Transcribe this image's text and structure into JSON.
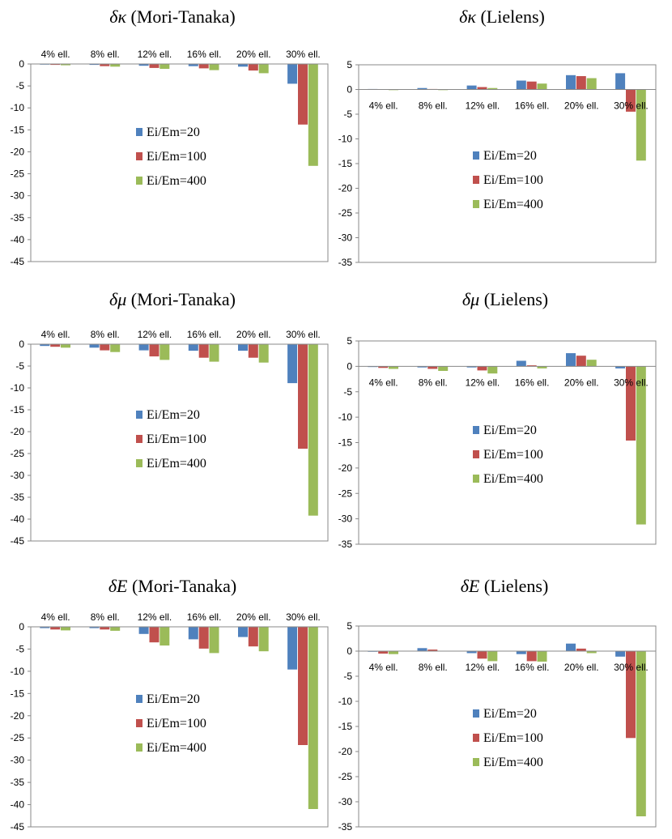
{
  "chart_data": [
    {
      "type": "bar",
      "title": {
        "symbol": "δκ",
        "method": "(Mori-Tanaka)"
      },
      "categories": [
        "4% ell.",
        "8% ell.",
        "12% ell.",
        "16% ell.",
        "20% ell.",
        "30% ell."
      ],
      "series": [
        {
          "name": "Ei/Em=20",
          "color": "#4f81bd",
          "values": [
            -0.1,
            -0.2,
            -0.4,
            -0.5,
            -0.6,
            -4.5
          ]
        },
        {
          "name": "Ei/Em=100",
          "color": "#c0504d",
          "values": [
            -0.2,
            -0.5,
            -0.9,
            -1.0,
            -1.5,
            -13.8
          ]
        },
        {
          "name": "Ei/Em=400",
          "color": "#9bbb59",
          "values": [
            -0.3,
            -0.6,
            -1.1,
            -1.4,
            -2.1,
            -23.2
          ]
        }
      ],
      "ylim": [
        -45,
        0
      ],
      "yticks": [
        0,
        -5,
        -10,
        -15,
        -20,
        -25,
        -30,
        -35,
        -40,
        -45
      ],
      "category_labels_position": "top"
    },
    {
      "type": "bar",
      "title": {
        "symbol": "δκ",
        "method": "(Lielens)"
      },
      "categories": [
        "4% ell.",
        "8% ell.",
        "12% ell.",
        "16% ell.",
        "20% ell.",
        "30% ell."
      ],
      "series": [
        {
          "name": "Ei/Em=20",
          "color": "#4f81bd",
          "values": [
            0.1,
            0.3,
            0.8,
            1.8,
            2.9,
            3.3
          ]
        },
        {
          "name": "Ei/Em=100",
          "color": "#c0504d",
          "values": [
            0.05,
            0.1,
            0.5,
            1.6,
            2.7,
            -4.5
          ]
        },
        {
          "name": "Ei/Em=400",
          "color": "#9bbb59",
          "values": [
            -0.1,
            -0.1,
            0.3,
            1.2,
            2.3,
            -14.4
          ]
        }
      ],
      "ylim": [
        -35,
        5
      ],
      "yticks": [
        5,
        0,
        -5,
        -10,
        -15,
        -20,
        -25,
        -30,
        -35
      ],
      "category_labels_position": "below-zero"
    },
    {
      "type": "bar",
      "title": {
        "symbol": "δμ",
        "method": "(Mori-Tanaka)"
      },
      "categories": [
        "4% ell.",
        "8% ell.",
        "12% ell.",
        "16% ell.",
        "20% ell.",
        "30% ell."
      ],
      "series": [
        {
          "name": "Ei/Em=20",
          "color": "#4f81bd",
          "values": [
            -0.4,
            -0.8,
            -1.4,
            -1.5,
            -1.5,
            -8.9
          ]
        },
        {
          "name": "Ei/Em=100",
          "color": "#c0504d",
          "values": [
            -0.6,
            -1.4,
            -2.8,
            -3.1,
            -3.1,
            -23.9
          ]
        },
        {
          "name": "Ei/Em=400",
          "color": "#9bbb59",
          "values": [
            -0.8,
            -1.8,
            -3.6,
            -4.0,
            -4.2,
            -39.2
          ]
        }
      ],
      "ylim": [
        -45,
        0
      ],
      "yticks": [
        0,
        -5,
        -10,
        -15,
        -20,
        -25,
        -30,
        -35,
        -40,
        -45
      ],
      "category_labels_position": "top"
    },
    {
      "type": "bar",
      "title": {
        "symbol": "δμ",
        "method": "(Lielens)"
      },
      "categories": [
        "4% ell.",
        "8% ell.",
        "12% ell.",
        "16% ell.",
        "20% ell.",
        "30% ell."
      ],
      "series": [
        {
          "name": "Ei/Em=20",
          "color": "#4f81bd",
          "values": [
            -0.1,
            -0.2,
            -0.2,
            1.1,
            2.6,
            -0.4
          ]
        },
        {
          "name": "Ei/Em=100",
          "color": "#c0504d",
          "values": [
            -0.3,
            -0.5,
            -0.8,
            0.2,
            2.1,
            -14.6
          ]
        },
        {
          "name": "Ei/Em=400",
          "color": "#9bbb59",
          "values": [
            -0.5,
            -0.9,
            -1.4,
            -0.4,
            1.3,
            -31.1
          ]
        }
      ],
      "ylim": [
        -35,
        5
      ],
      "yticks": [
        5,
        0,
        -5,
        -10,
        -15,
        -20,
        -25,
        -30,
        -35
      ],
      "category_labels_position": "below-zero"
    },
    {
      "type": "bar",
      "title": {
        "symbol": "δE",
        "method": "(Mori-Tanaka)"
      },
      "categories": [
        "4% ell.",
        "8% ell.",
        "12% ell.",
        "16% ell.",
        "20% ell.",
        "30% ell."
      ],
      "series": [
        {
          "name": "Ei/Em=20",
          "color": "#4f81bd",
          "values": [
            -0.3,
            -0.3,
            -1.6,
            -2.8,
            -2.3,
            -9.6
          ]
        },
        {
          "name": "Ei/Em=100",
          "color": "#c0504d",
          "values": [
            -0.6,
            -0.6,
            -3.5,
            -4.9,
            -4.4,
            -26.6
          ]
        },
        {
          "name": "Ei/Em=400",
          "color": "#9bbb59",
          "values": [
            -0.8,
            -0.9,
            -4.2,
            -5.9,
            -5.5,
            -41.0
          ]
        }
      ],
      "ylim": [
        -45,
        0
      ],
      "yticks": [
        0,
        -5,
        -10,
        -15,
        -20,
        -25,
        -30,
        -35,
        -40,
        -45
      ],
      "category_labels_position": "top"
    },
    {
      "type": "bar",
      "title": {
        "symbol": "δE",
        "method": "(Lielens)"
      },
      "categories": [
        "4% ell.",
        "8% ell.",
        "12% ell.",
        "16% ell.",
        "20% ell.",
        "30% ell."
      ],
      "series": [
        {
          "name": "Ei/Em=20",
          "color": "#4f81bd",
          "values": [
            -0.1,
            0.6,
            -0.4,
            -0.6,
            1.5,
            -1.1
          ]
        },
        {
          "name": "Ei/Em=100",
          "color": "#c0504d",
          "values": [
            -0.5,
            0.3,
            -1.5,
            -2.0,
            0.5,
            -17.3
          ]
        },
        {
          "name": "Ei/Em=400",
          "color": "#9bbb59",
          "values": [
            -0.6,
            0.05,
            -2.0,
            -2.1,
            -0.4,
            -32.9
          ]
        }
      ],
      "ylim": [
        -35,
        5
      ],
      "yticks": [
        5,
        0,
        -5,
        -10,
        -15,
        -20,
        -25,
        -30,
        -35
      ],
      "category_labels_position": "below-zero"
    }
  ]
}
